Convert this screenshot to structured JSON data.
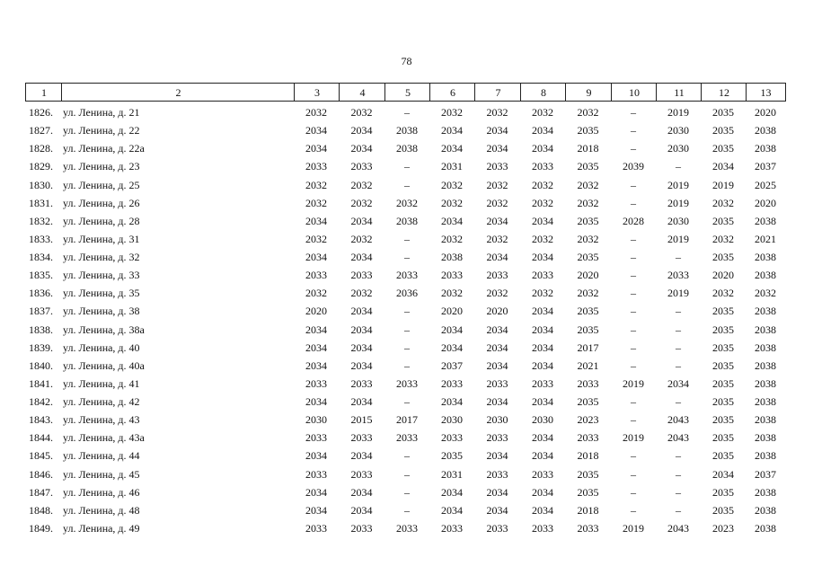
{
  "page_number": "78",
  "table": {
    "header": [
      "1",
      "2",
      "3",
      "4",
      "5",
      "6",
      "7",
      "8",
      "9",
      "10",
      "11",
      "12",
      "13"
    ],
    "rows": [
      [
        "1826.",
        "ул. Ленина, д. 21",
        "2032",
        "2032",
        "–",
        "2032",
        "2032",
        "2032",
        "2032",
        "–",
        "2019",
        "2035",
        "2020"
      ],
      [
        "1827.",
        "ул. Ленина, д. 22",
        "2034",
        "2034",
        "2038",
        "2034",
        "2034",
        "2034",
        "2035",
        "–",
        "2030",
        "2035",
        "2038"
      ],
      [
        "1828.",
        "ул. Ленина, д. 22а",
        "2034",
        "2034",
        "2038",
        "2034",
        "2034",
        "2034",
        "2018",
        "–",
        "2030",
        "2035",
        "2038"
      ],
      [
        "1829.",
        "ул. Ленина, д. 23",
        "2033",
        "2033",
        "–",
        "2031",
        "2033",
        "2033",
        "2035",
        "2039",
        "–",
        "2034",
        "2037"
      ],
      [
        "1830.",
        "ул. Ленина, д. 25",
        "2032",
        "2032",
        "–",
        "2032",
        "2032",
        "2032",
        "2032",
        "–",
        "2019",
        "2019",
        "2025"
      ],
      [
        "1831.",
        "ул. Ленина, д. 26",
        "2032",
        "2032",
        "2032",
        "2032",
        "2032",
        "2032",
        "2032",
        "–",
        "2019",
        "2032",
        "2020"
      ],
      [
        "1832.",
        "ул. Ленина, д. 28",
        "2034",
        "2034",
        "2038",
        "2034",
        "2034",
        "2034",
        "2035",
        "2028",
        "2030",
        "2035",
        "2038"
      ],
      [
        "1833.",
        "ул. Ленина, д. 31",
        "2032",
        "2032",
        "–",
        "2032",
        "2032",
        "2032",
        "2032",
        "–",
        "2019",
        "2032",
        "2021"
      ],
      [
        "1834.",
        "ул. Ленина, д. 32",
        "2034",
        "2034",
        "–",
        "2038",
        "2034",
        "2034",
        "2035",
        "–",
        "–",
        "2035",
        "2038"
      ],
      [
        "1835.",
        "ул. Ленина, д. 33",
        "2033",
        "2033",
        "2033",
        "2033",
        "2033",
        "2033",
        "2020",
        "–",
        "2033",
        "2020",
        "2038"
      ],
      [
        "1836.",
        "ул. Ленина, д. 35",
        "2032",
        "2032",
        "2036",
        "2032",
        "2032",
        "2032",
        "2032",
        "–",
        "2019",
        "2032",
        "2032"
      ],
      [
        "1837.",
        "ул. Ленина, д. 38",
        "2020",
        "2034",
        "–",
        "2020",
        "2020",
        "2034",
        "2035",
        "–",
        "–",
        "2035",
        "2038"
      ],
      [
        "1838.",
        "ул. Ленина, д. 38а",
        "2034",
        "2034",
        "–",
        "2034",
        "2034",
        "2034",
        "2035",
        "–",
        "–",
        "2035",
        "2038"
      ],
      [
        "1839.",
        "ул. Ленина, д. 40",
        "2034",
        "2034",
        "–",
        "2034",
        "2034",
        "2034",
        "2017",
        "–",
        "–",
        "2035",
        "2038"
      ],
      [
        "1840.",
        "ул. Ленина, д. 40а",
        "2034",
        "2034",
        "–",
        "2037",
        "2034",
        "2034",
        "2021",
        "–",
        "–",
        "2035",
        "2038"
      ],
      [
        "1841.",
        "ул. Ленина, д. 41",
        "2033",
        "2033",
        "2033",
        "2033",
        "2033",
        "2033",
        "2033",
        "2019",
        "2034",
        "2035",
        "2038"
      ],
      [
        "1842.",
        "ул. Ленина, д. 42",
        "2034",
        "2034",
        "–",
        "2034",
        "2034",
        "2034",
        "2035",
        "–",
        "–",
        "2035",
        "2038"
      ],
      [
        "1843.",
        "ул. Ленина, д. 43",
        "2030",
        "2015",
        "2017",
        "2030",
        "2030",
        "2030",
        "2023",
        "–",
        "2043",
        "2035",
        "2038"
      ],
      [
        "1844.",
        "ул. Ленина, д. 43а",
        "2033",
        "2033",
        "2033",
        "2033",
        "2033",
        "2034",
        "2033",
        "2019",
        "2043",
        "2035",
        "2038"
      ],
      [
        "1845.",
        "ул. Ленина, д. 44",
        "2034",
        "2034",
        "–",
        "2035",
        "2034",
        "2034",
        "2018",
        "–",
        "–",
        "2035",
        "2038"
      ],
      [
        "1846.",
        "ул. Ленина, д. 45",
        "2033",
        "2033",
        "–",
        "2031",
        "2033",
        "2033",
        "2035",
        "–",
        "–",
        "2034",
        "2037"
      ],
      [
        "1847.",
        "ул. Ленина, д. 46",
        "2034",
        "2034",
        "–",
        "2034",
        "2034",
        "2034",
        "2035",
        "–",
        "–",
        "2035",
        "2038"
      ],
      [
        "1848.",
        "ул. Ленина, д. 48",
        "2034",
        "2034",
        "–",
        "2034",
        "2034",
        "2034",
        "2018",
        "–",
        "–",
        "2035",
        "2038"
      ],
      [
        "1849.",
        "ул. Ленина, д. 49",
        "2033",
        "2033",
        "2033",
        "2033",
        "2033",
        "2033",
        "2033",
        "2019",
        "2043",
        "2023",
        "2038"
      ]
    ]
  }
}
